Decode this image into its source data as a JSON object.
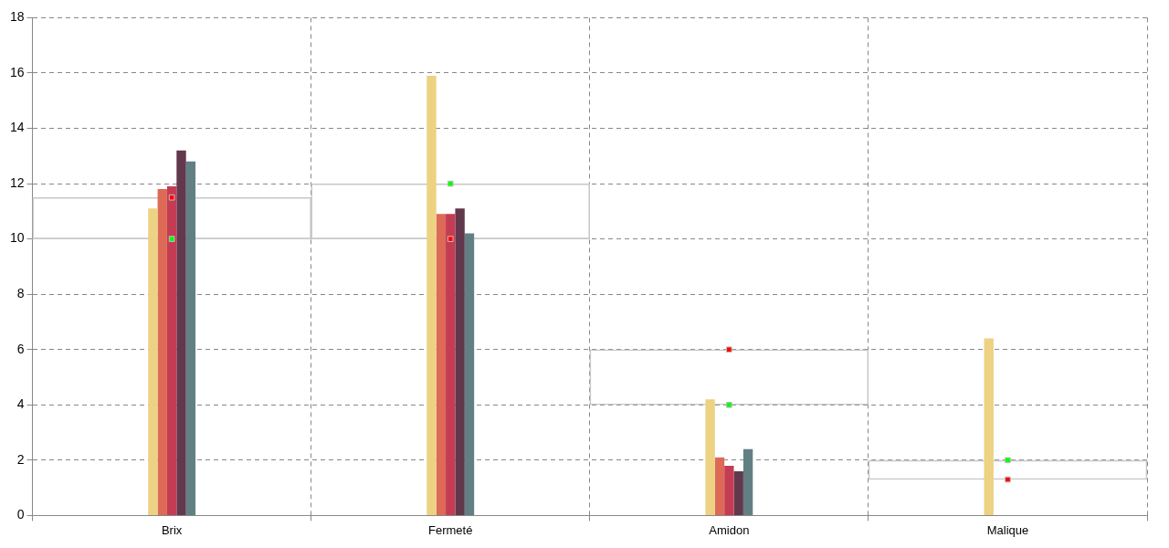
{
  "chart_data": {
    "type": "bar",
    "categories": [
      "Brix",
      "Fermeté",
      "Amidon",
      "Malique"
    ],
    "series": [
      {
        "type": "bar",
        "color": "#c8c8c8",
        "base": [
          10,
          10,
          4,
          1.3
        ],
        "values": [
          1.5,
          2,
          2,
          0.7
        ]
      },
      {
        "color": "#ecd282",
        "values": [
          11.1,
          15.9,
          4.2,
          6.4
        ]
      },
      {
        "color": "#dc6a56",
        "values": [
          11.8,
          10.9,
          2.1,
          0
        ]
      },
      {
        "color": "#c43c54",
        "values": [
          11.9,
          10.9,
          1.8,
          0
        ]
      },
      {
        "color": "#62384c",
        "values": [
          13.2,
          11.1,
          1.6,
          0
        ]
      },
      {
        "color": "#628084",
        "values": [
          12.8,
          10.2,
          2.4,
          0
        ]
      },
      {
        "type": "scatter",
        "color": "#00ff00",
        "values": [
          10,
          12,
          4,
          2
        ]
      },
      {
        "type": "scatter",
        "color": "#ff0000",
        "values": [
          11.5,
          10,
          6,
          1.3
        ]
      }
    ],
    "ylim": [
      0,
      18
    ],
    "yticks": [
      0,
      2,
      4,
      6,
      8,
      10,
      12,
      14,
      16,
      18
    ],
    "grid": true,
    "legend": false
  }
}
